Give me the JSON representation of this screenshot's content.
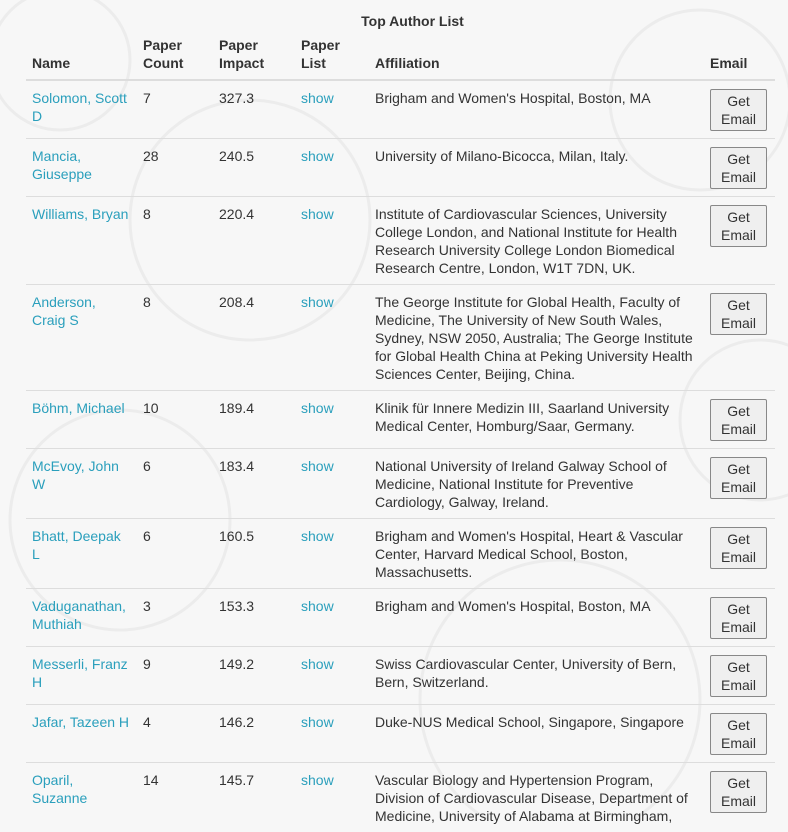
{
  "title": "Top Author List",
  "headers": {
    "name": "Name",
    "count": "Paper Count",
    "impact": "Paper Impact",
    "list": "Paper List",
    "affiliation": "Affiliation",
    "email": "Email"
  },
  "show_label": "show",
  "email_button_label": "Get Email",
  "colors": {
    "link": "#2a9fbc",
    "background": "#f7f7f7"
  },
  "rows": [
    {
      "name": "Solomon, Scott D",
      "count": "7",
      "impact": "327.3",
      "affiliation": "Brigham and Women's Hospital, Boston, MA"
    },
    {
      "name": "Mancia, Giuseppe",
      "count": "28",
      "impact": "240.5",
      "affiliation": "University of Milano-Bicocca, Milan, Italy."
    },
    {
      "name": "Williams, Bryan",
      "count": "8",
      "impact": "220.4",
      "affiliation": "Institute of Cardiovascular Sciences, University College London, and National Institute for Health Research University College London Biomedical Research Centre, London, W1T 7DN, UK."
    },
    {
      "name": "Anderson, Craig S",
      "count": "8",
      "impact": "208.4",
      "affiliation": "The George Institute for Global Health, Faculty of Medicine, The University of New South Wales, Sydney, NSW 2050, Australia; The George Institute for Global Health China at Peking University Health Sciences Center, Beijing, China."
    },
    {
      "name": "Böhm, Michael",
      "count": "10",
      "impact": "189.4",
      "affiliation": "Klinik für Innere Medizin III, Saarland University Medical Center, Homburg/Saar, Germany."
    },
    {
      "name": "McEvoy, John W",
      "count": "6",
      "impact": "183.4",
      "affiliation": "National University of Ireland Galway School of Medicine, National Institute for Preventive Cardiology, Galway, Ireland."
    },
    {
      "name": "Bhatt, Deepak L",
      "count": "6",
      "impact": "160.5",
      "affiliation": "Brigham and Women's Hospital, Heart & Vascular Center, Harvard Medical School, Boston, Massachusetts."
    },
    {
      "name": "Vaduganathan, Muthiah",
      "count": "3",
      "impact": "153.3",
      "affiliation": "Brigham and Women's Hospital, Boston, MA"
    },
    {
      "name": "Messerli, Franz H",
      "count": "9",
      "impact": "149.2",
      "affiliation": "Swiss Cardiovascular Center, University of Bern, Bern, Switzerland."
    },
    {
      "name": "Jafar, Tazeen H",
      "count": "4",
      "impact": "146.2",
      "affiliation": "Duke-NUS Medical School, Singapore, Singapore"
    },
    {
      "name": "Oparil, Suzanne",
      "count": "14",
      "impact": "145.7",
      "affiliation": "Vascular Biology and Hypertension Program, Division of Cardiovascular Disease, Department of Medicine, University of Alabama at Birmingham,"
    }
  ]
}
